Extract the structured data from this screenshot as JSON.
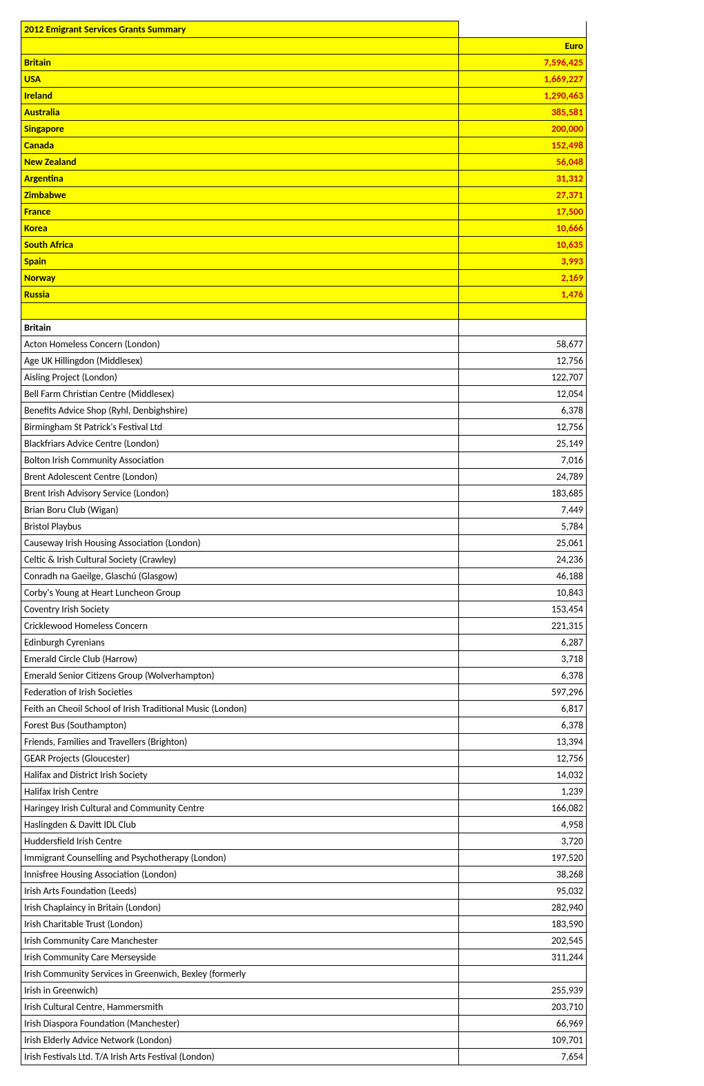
{
  "title": "2012 Emigrant Services Grants Summary",
  "currency_header": "Euro",
  "summary": [
    {
      "label": "Britain",
      "value": "7,596,425"
    },
    {
      "label": "USA",
      "value": "1,669,227"
    },
    {
      "label": "Ireland",
      "value": "1,290,463"
    },
    {
      "label": "Australia",
      "value": "385,581"
    },
    {
      "label": "Singapore",
      "value": "200,000"
    },
    {
      "label": "Canada",
      "value": "152,498"
    },
    {
      "label": "New Zealand",
      "value": "56,048"
    },
    {
      "label": "Argentina",
      "value": "31,312"
    },
    {
      "label": "Zimbabwe",
      "value": "27,371"
    },
    {
      "label": "France",
      "value": "17,500"
    },
    {
      "label": "Korea",
      "value": "10,666"
    },
    {
      "label": "South Africa",
      "value": "10,635"
    },
    {
      "label": "Spain",
      "value": "3,993"
    },
    {
      "label": "Norway",
      "value": "2,169"
    },
    {
      "label": "Russia",
      "value": "1,476"
    }
  ],
  "section_header": "Britain",
  "detail_rows": [
    {
      "label": "Acton Homeless Concern (London)",
      "value": "58,677"
    },
    {
      "label": "Age UK Hillingdon (Middlesex)",
      "value": "12,756"
    },
    {
      "label": "Aisling Project (London)",
      "value": "122,707"
    },
    {
      "label": "Bell Farm Christian Centre (Middlesex)",
      "value": "12,054"
    },
    {
      "label": "Benefits Advice Shop (Ryhl, Denbighshire)",
      "value": "6,378"
    },
    {
      "label": "Birmingham St Patrick's Festival Ltd",
      "value": "12,756"
    },
    {
      "label": "Blackfriars Advice Centre (London)",
      "value": "25,149"
    },
    {
      "label": "Bolton Irish Community Association",
      "value": "7,016"
    },
    {
      "label": "Brent Adolescent Centre (London)",
      "value": "24,789"
    },
    {
      "label": "Brent Irish Advisory Service (London)",
      "value": "183,685"
    },
    {
      "label": "Brian Boru Club (Wigan)",
      "value": "7,449"
    },
    {
      "label": "Bristol Playbus",
      "value": "5,784"
    },
    {
      "label": "Causeway Irish Housing Association (London)",
      "value": "25,061"
    },
    {
      "label": "Celtic & Irish Cultural Society  (Crawley)",
      "value": "24,236"
    },
    {
      "label": "Conradh na Gaeilge, Glaschú (Glasgow)",
      "value": "46,188"
    },
    {
      "label": "Corby's Young at Heart Luncheon Group",
      "value": "10,843"
    },
    {
      "label": "Coventry Irish Society",
      "value": "153,454"
    },
    {
      "label": "Cricklewood Homeless Concern",
      "value": "221,315"
    },
    {
      "label": "Edinburgh Cyrenians",
      "value": "6,287"
    },
    {
      "label": "Emerald Circle Club (Harrow)",
      "value": "3,718"
    },
    {
      "label": "Emerald Senior Citizens Group (Wolverhampton)",
      "value": "6,378"
    },
    {
      "label": "Federation of Irish Societies",
      "value": "597,296"
    },
    {
      "label": "Feith an Cheoil School of Irish Traditional Music  (London)",
      "value": "6,817"
    },
    {
      "label": "Forest Bus (Southampton)",
      "value": "6,378"
    },
    {
      "label": "Friends, Families and Travellers (Brighton)",
      "value": "13,394"
    },
    {
      "label": "GEAR Projects (Gloucester)",
      "value": "12,756"
    },
    {
      "label": "Halifax and District Irish Society",
      "value": "14,032"
    },
    {
      "label": "Halifax Irish Centre",
      "value": "1,239"
    },
    {
      "label": "Haringey Irish Cultural and Community Centre",
      "value": "166,082"
    },
    {
      "label": "Haslingden & Davitt IDL Club",
      "value": "4,958"
    },
    {
      "label": "Huddersfield Irish Centre",
      "value": "3,720"
    },
    {
      "label": "Immigrant Counselling and Psychotherapy (London)",
      "value": "197,520"
    },
    {
      "label": "Innisfree Housing Association (London)",
      "value": "38,268"
    },
    {
      "label": "Irish Arts Foundation (Leeds)",
      "value": "95,032"
    },
    {
      "label": "Irish Chaplaincy in Britain (London)",
      "value": "282,940"
    },
    {
      "label": "Irish Charitable Trust (London)",
      "value": "183,590"
    },
    {
      "label": "Irish Community Care Manchester",
      "value": "202,545"
    },
    {
      "label": "Irish Community Care Merseyside",
      "value": "311,244"
    },
    {
      "label": "Irish Community Services in Greenwich, Bexley  (formerly",
      "value": ""
    },
    {
      "label": "Irish in Greenwich)",
      "value": "255,939"
    },
    {
      "label": "Irish Cultural Centre, Hammersmith",
      "value": "203,710"
    },
    {
      "label": "Irish Diaspora Foundation (Manchester)",
      "value": "66,969"
    },
    {
      "label": "Irish Elderly Advice Network (London)",
      "value": "109,701"
    },
    {
      "label": "Irish Festivals Ltd. T/A Irish Arts Festival (London)",
      "value": "7,654"
    }
  ],
  "colors": {
    "highlight_bg": "#ffff00",
    "value_color": "#c00000",
    "text_color": "#000000",
    "border_color": "#000000",
    "page_bg": "#ffffff"
  }
}
